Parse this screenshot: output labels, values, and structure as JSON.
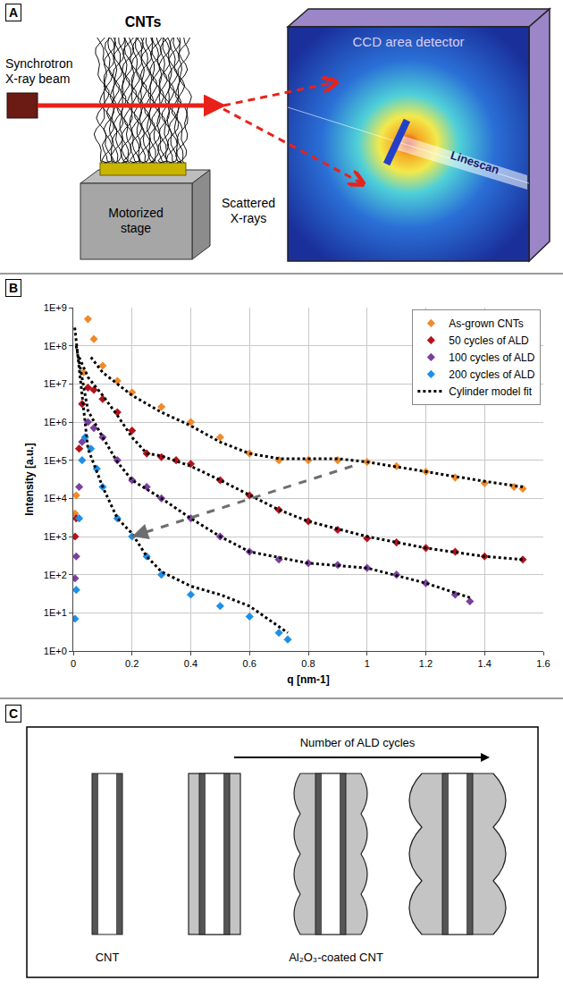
{
  "panel_letters": [
    "A",
    "B",
    "C"
  ],
  "panel_a": {
    "cnts": "CNTs",
    "beam": "Synchrotron X-ray beam",
    "stage": "Motorized stage",
    "scattered": "Scattered X-rays",
    "detector": "CCD area detector",
    "linescan": "Linescan"
  },
  "chart_data": {
    "type": "scatter",
    "x_label": "q [nm-1]",
    "y_label": "Intensity [a.u.]",
    "xlim": [
      0,
      1.6
    ],
    "xticks": [
      0,
      0.2,
      0.4,
      0.6,
      0.8,
      1,
      1.2,
      1.4,
      1.6
    ],
    "ylim": [
      1,
      1000000000
    ],
    "yticks": [
      {
        "value": 1,
        "label": "1E+0"
      },
      {
        "value": 10,
        "label": "1E+1"
      },
      {
        "value": 100,
        "label": "1E+2"
      },
      {
        "value": 1000,
        "label": "1E+3"
      },
      {
        "value": 10000,
        "label": "1E+4"
      },
      {
        "value": 100000,
        "label": "1E+5"
      },
      {
        "value": 1000000,
        "label": "1E+6"
      },
      {
        "value": 10000000,
        "label": "1E+7"
      },
      {
        "value": 100000000,
        "label": "1E+8"
      },
      {
        "value": 1000000000,
        "label": "1E+9"
      }
    ],
    "log": "y",
    "grid": true,
    "legend": "top right",
    "series": [
      {
        "name": "As-grown CNTs",
        "color": "#f0892a",
        "marker": "diamond",
        "x": [
          0.006,
          0.01,
          0.02,
          0.035,
          0.05,
          0.07,
          0.1,
          0.15,
          0.2,
          0.3,
          0.4,
          0.5,
          0.6,
          0.7,
          0.8,
          0.9,
          1.0,
          1.1,
          1.2,
          1.3,
          1.4,
          1.5,
          1.53
        ],
        "values": [
          4000,
          12000,
          200000,
          20000000,
          500000000,
          150000000,
          30000000,
          12000000,
          6000000,
          2500000,
          1000000,
          400000,
          150000,
          100000,
          100000,
          100000,
          90000,
          70000,
          50000,
          35000,
          25000,
          20000,
          18000
        ]
      },
      {
        "name": "50 cycles of ALD",
        "color": "#b5121b",
        "marker": "diamond",
        "x": [
          0.006,
          0.01,
          0.02,
          0.03,
          0.05,
          0.07,
          0.1,
          0.15,
          0.2,
          0.25,
          0.3,
          0.35,
          0.4,
          0.5,
          0.6,
          0.7,
          0.8,
          0.9,
          1.0,
          1.1,
          1.2,
          1.3,
          1.4,
          1.53
        ],
        "values": [
          1000,
          3000,
          200000,
          3000000,
          8000000,
          7000000,
          4000000,
          1800000,
          600000,
          150000,
          120000,
          100000,
          80000,
          30000,
          12000,
          5000,
          2500,
          1500,
          900,
          700,
          500,
          400,
          300,
          250
        ]
      },
      {
        "name": "100 cycles of ALD",
        "color": "#7b3f9e",
        "marker": "diamond",
        "x": [
          0.006,
          0.01,
          0.02,
          0.03,
          0.05,
          0.07,
          0.1,
          0.15,
          0.2,
          0.25,
          0.3,
          0.4,
          0.5,
          0.6,
          0.7,
          0.8,
          0.9,
          1.0,
          1.1,
          1.2,
          1.3,
          1.35
        ],
        "values": [
          80,
          300,
          20000,
          300000,
          1000000,
          700000,
          400000,
          100000,
          30000,
          20000,
          10000,
          3000,
          1000,
          400,
          250,
          200,
          180,
          150,
          100,
          60,
          30,
          20
        ]
      },
      {
        "name": "200 cycles of ALD",
        "color": "#1e8fe8",
        "marker": "diamond",
        "x": [
          0.006,
          0.01,
          0.02,
          0.03,
          0.04,
          0.06,
          0.08,
          0.1,
          0.15,
          0.2,
          0.25,
          0.3,
          0.4,
          0.5,
          0.6,
          0.7,
          0.73
        ],
        "values": [
          7,
          40,
          3000,
          100000,
          400000,
          200000,
          60000,
          20000,
          3000,
          1000,
          300,
          100,
          30,
          15,
          8,
          3,
          2
        ]
      },
      {
        "name": "Cylinder model fit",
        "color": "#000000",
        "line_style": "dotted",
        "x": [
          0.06,
          0.1,
          0.2,
          0.3,
          0.4,
          0.5,
          0.6,
          0.7,
          0.8,
          0.9,
          1.0,
          1.2,
          1.4,
          1.53,
          null,
          0.02,
          0.05,
          0.1,
          0.15,
          0.2,
          0.25,
          0.3,
          0.4,
          0.5,
          0.6,
          0.7,
          0.8,
          1.0,
          1.2,
          1.4,
          1.53,
          null,
          0.01,
          0.05,
          0.1,
          0.15,
          0.2,
          0.3,
          0.4,
          0.5,
          0.6,
          0.8,
          1.0,
          1.2,
          1.35,
          null,
          0.005,
          0.05,
          0.1,
          0.15,
          0.2,
          0.25,
          0.3,
          0.4,
          0.5,
          0.6,
          0.73
        ],
        "values": [
          50000000,
          20000000,
          5000000,
          1800000,
          800000,
          300000,
          150000,
          110000,
          110000,
          110000,
          90000,
          50000,
          28000,
          20000,
          null,
          50000000,
          15000000,
          5000000,
          1500000,
          400000,
          150000,
          130000,
          70000,
          30000,
          12000,
          5000,
          2500,
          1000,
          500,
          300,
          250,
          null,
          100000000,
          2000000,
          400000,
          90000,
          30000,
          10000,
          3000,
          1000,
          400,
          200,
          150,
          60,
          25,
          null,
          300000000,
          200000,
          20000,
          3000,
          1200,
          300,
          120,
          50,
          30,
          15,
          3
        ]
      }
    ],
    "arrow": {
      "x": [
        0.95,
        0.2
      ],
      "y": [
        70000,
        1000
      ]
    }
  },
  "panel_c": {
    "arrow_label": "Number of ALD cycles",
    "labels": [
      "CNT",
      "Al₂O₃-coated CNT"
    ]
  }
}
